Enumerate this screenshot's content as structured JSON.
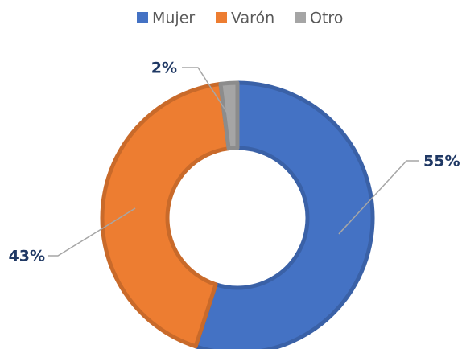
{
  "chart_data": {
    "type": "donut",
    "categories": [
      "Mujer",
      "Varón",
      "Otro"
    ],
    "values": [
      55,
      43,
      2
    ],
    "value_labels": [
      "55%",
      "43%",
      "2%"
    ],
    "colors": [
      "#4472c4",
      "#ed7d31",
      "#a5a5a5"
    ],
    "legend": "top"
  }
}
